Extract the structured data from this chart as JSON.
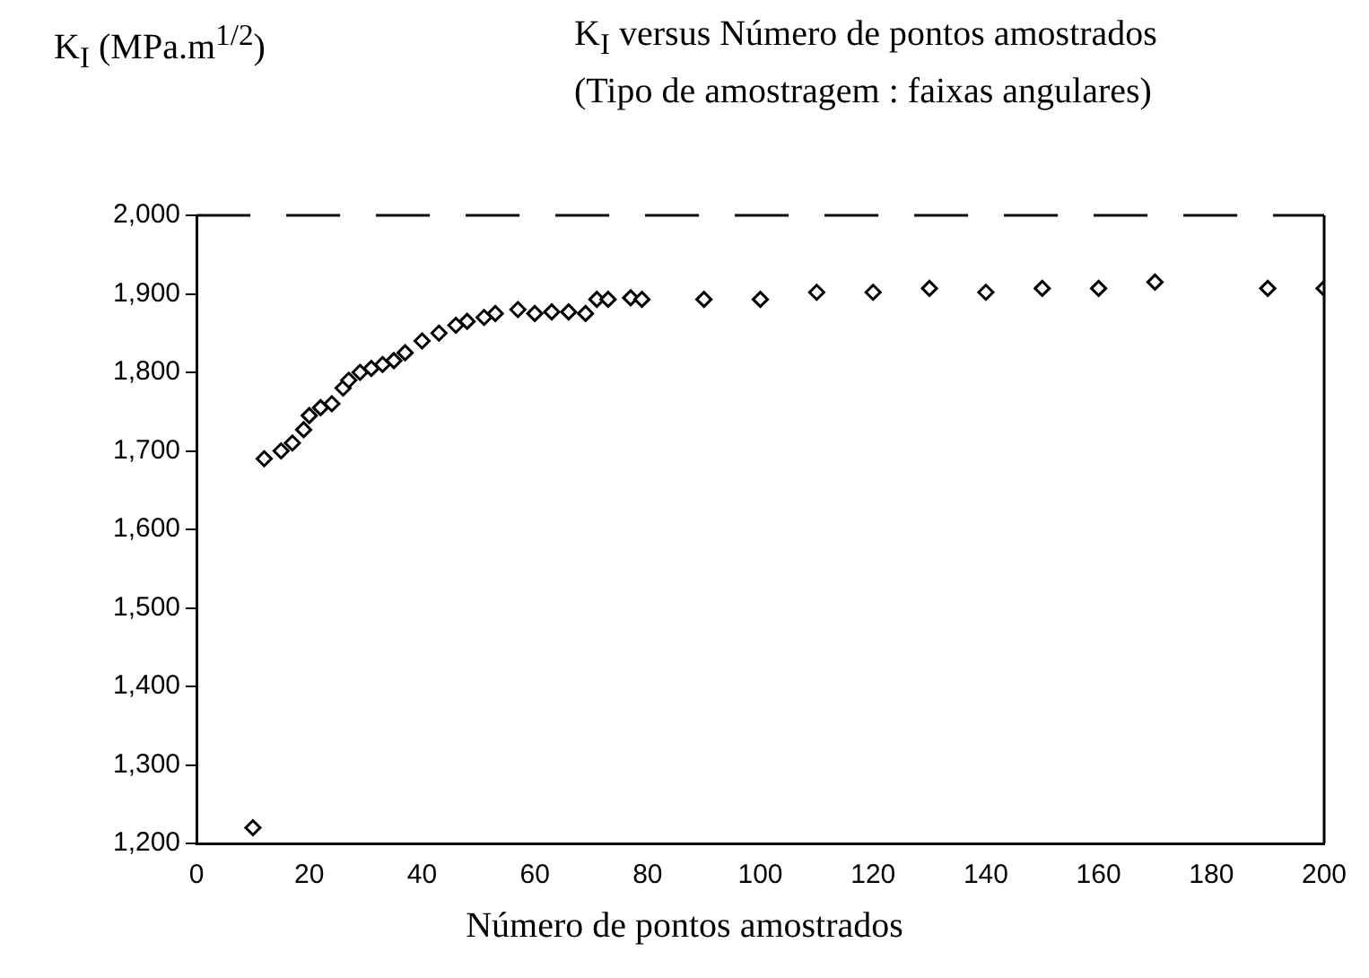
{
  "chart_data": {
    "type": "scatter",
    "title": "K$_{I}$ versus Número de pontos amostrados",
    "subtitle": "(Tipo de amostragem : faixas angulares)",
    "ylabel": "K$_{I}$ (MPa.m$^{1/2}$)",
    "xlabel": "Número de pontos amostrados",
    "series": [
      {
        "color": "#000000",
        "x": [
          10,
          12,
          15,
          17,
          19,
          20,
          22,
          24,
          26,
          27,
          29,
          31,
          33,
          35,
          37,
          40,
          43,
          46,
          48,
          51,
          53,
          57,
          60,
          63,
          66,
          69,
          71,
          73,
          77,
          79,
          90,
          100,
          110,
          120,
          130,
          140,
          150,
          160,
          170,
          190,
          200
        ],
        "values": [
          1220,
          1690,
          1700,
          1710,
          1727,
          1745,
          1755,
          1760,
          1780,
          1790,
          1800,
          1805,
          1810,
          1815,
          1825,
          1840,
          1850,
          1860,
          1865,
          1870,
          1875,
          1880,
          1875,
          1877,
          1877,
          1875,
          1893,
          1893,
          1895,
          1893,
          1893,
          1893,
          1902,
          1902,
          1907,
          1902,
          1907,
          1907,
          1915,
          1907,
          1907
        ]
      }
    ],
    "xlim": [
      0,
      200
    ],
    "xticks": [
      0,
      20,
      40,
      60,
      80,
      100,
      120,
      140,
      160,
      180,
      200
    ],
    "ylim": [
      1200,
      2000
    ],
    "yticks": [
      {
        "value": 1200,
        "label": "1,200"
      },
      {
        "value": 1300,
        "label": "1,300"
      },
      {
        "value": 1400,
        "label": "1,400"
      },
      {
        "value": 1500,
        "label": "1,500"
      },
      {
        "value": 1600,
        "label": "1,600"
      },
      {
        "value": 1700,
        "label": "1,700"
      },
      {
        "value": 1800,
        "label": "1,800"
      },
      {
        "value": 1900,
        "label": "1,900"
      },
      {
        "value": 2000,
        "label": "2,000"
      }
    ],
    "marker": "diamond",
    "grid": false,
    "legend": false
  }
}
